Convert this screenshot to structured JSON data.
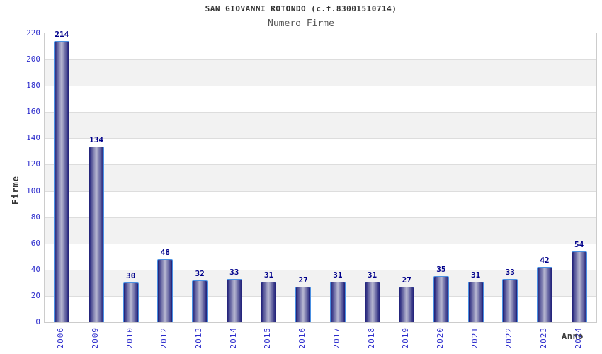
{
  "header": {
    "title": "SAN GIOVANNI ROTONDO (c.f.83001510714)",
    "subtitle": "Numero Firme"
  },
  "chart_data": {
    "type": "bar",
    "title": "SAN GIOVANNI ROTONDO (c.f.83001510714)",
    "subtitle": "Numero Firme",
    "xlabel": "Anno",
    "ylabel": "Firme",
    "categories": [
      "2006",
      "2009",
      "2010",
      "2012",
      "2013",
      "2014",
      "2015",
      "2016",
      "2017",
      "2018",
      "2019",
      "2020",
      "2021",
      "2022",
      "2023",
      "2024"
    ],
    "values": [
      214,
      134,
      30,
      48,
      32,
      33,
      31,
      27,
      31,
      31,
      27,
      35,
      31,
      33,
      42,
      54
    ],
    "ylim": [
      0,
      220
    ],
    "ytick_step": 20,
    "yticks": [
      0,
      20,
      40,
      60,
      80,
      100,
      120,
      140,
      160,
      180,
      200,
      220
    ],
    "grid": "horizontal lines with alternating shaded bands",
    "legend": "none",
    "value_labels_shown": true
  },
  "colors": {
    "axis_text_blue": "#2b2bcc",
    "value_label": "#00008b",
    "bar_border": "#4a90e2",
    "bar_edge_dark": "#1e1e78",
    "bar_center_light": "#b9b9d2",
    "band_gray": "#f2f2f2",
    "gridline": "#dddddd",
    "plot_border": "#cccccc",
    "title_color": "#333333",
    "subtitle_color": "#555555",
    "axis_label_color": "#404040"
  }
}
